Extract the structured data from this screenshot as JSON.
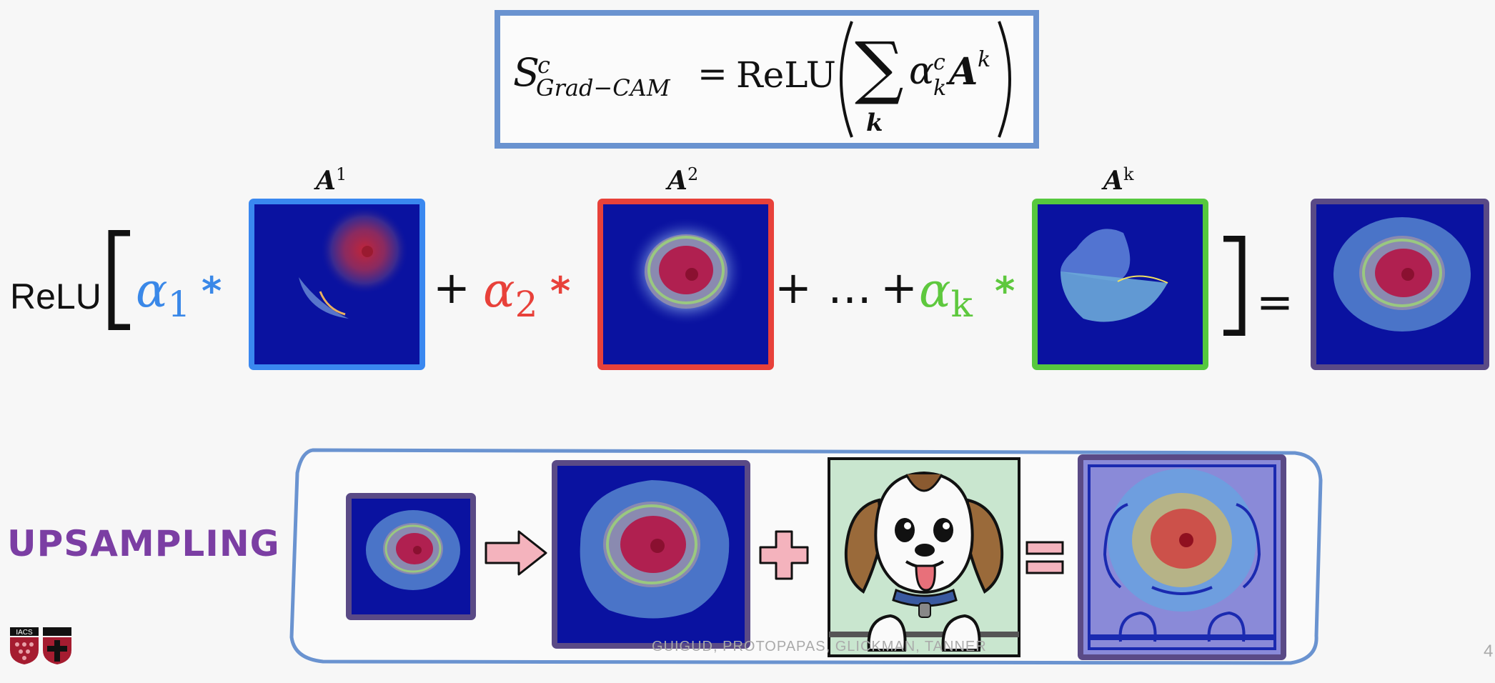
{
  "formula": {
    "lhs_symbol": "S",
    "lhs_sup": "c",
    "lhs_sub": "Grad−CAM",
    "equals": "=",
    "relu": "ReLU",
    "sum_symbol": "∑",
    "sum_index": "k",
    "alpha": "α",
    "alpha_sup": "c",
    "alpha_sub": "k",
    "A": "A",
    "A_sup": "k"
  },
  "equation": {
    "relu_label": "ReLU",
    "open_bracket": "[",
    "close_bracket": "]",
    "terms": [
      {
        "alpha": "α",
        "sub": "1",
        "star": "*",
        "map_label": "A",
        "map_sup": "1",
        "color": "#3a88e8"
      },
      {
        "alpha": "α",
        "sub": "2",
        "star": "*",
        "map_label": "A",
        "map_sup": "2",
        "color": "#e8413a"
      },
      {
        "alpha": "α",
        "sub": "k",
        "star": "*",
        "map_label": "A",
        "map_sup": "k",
        "color": "#5ec83e"
      }
    ],
    "plus": "+",
    "ellipsis": "…",
    "equals": "="
  },
  "frame_colors": {
    "map1": "#3a88f0",
    "map2": "#e8413a",
    "mapk": "#56c83e",
    "result": "#5a4a86"
  },
  "upsampling": {
    "label": "UPSAMPLING",
    "label_color": "#7b3ea3",
    "plus": "+",
    "equals": "=",
    "arrow_color": "#f4b3bd"
  },
  "footer": {
    "authors": "GUIGUD, PROTOPAPAS, GLICKMAN, TANNER",
    "page_number": "4",
    "logo_text": "IACS"
  }
}
